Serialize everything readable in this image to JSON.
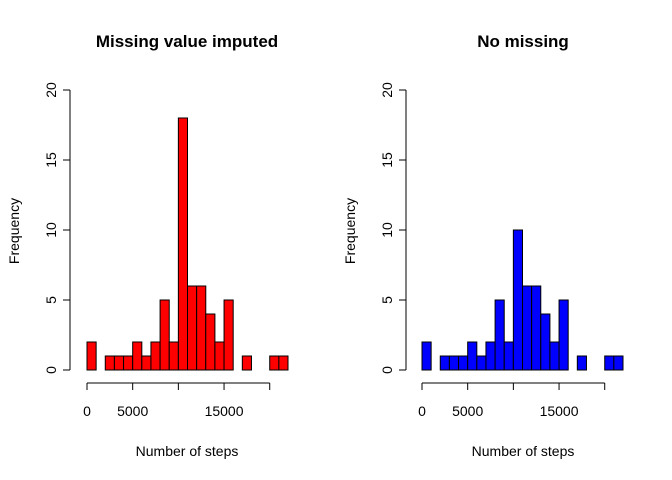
{
  "chart_data": [
    {
      "type": "bar",
      "title": "Missing value imputed",
      "xlabel": "Number of steps",
      "ylabel": "Frequency",
      "bar_color": "#ff0000",
      "bin_width": 1000,
      "bins_start": 0,
      "values": [
        2,
        0,
        1,
        1,
        1,
        2,
        1,
        2,
        5,
        2,
        18,
        6,
        6,
        4,
        2,
        5,
        0,
        1,
        0,
        0,
        1,
        1
      ],
      "x_ticks": [
        0,
        5000,
        10000,
        15000,
        20000
      ],
      "x_tick_labels": [
        "0",
        "5000",
        "",
        "15000",
        ""
      ],
      "y_ticks": [
        0,
        5,
        10,
        15,
        20
      ],
      "y_tick_labels": [
        "0",
        "5",
        "10",
        "15",
        "20"
      ],
      "ylim": [
        0,
        20
      ],
      "xlim": [
        0,
        22000
      ],
      "grid": false
    },
    {
      "type": "bar",
      "title": "No missing",
      "xlabel": "Number of steps",
      "ylabel": "Frequency",
      "bar_color": "#0000ff",
      "bin_width": 1000,
      "bins_start": 0,
      "values": [
        2,
        0,
        1,
        1,
        1,
        2,
        1,
        2,
        5,
        2,
        10,
        6,
        6,
        4,
        2,
        5,
        0,
        1,
        0,
        0,
        1,
        1
      ],
      "x_ticks": [
        0,
        5000,
        10000,
        15000,
        20000
      ],
      "x_tick_labels": [
        "0",
        "5000",
        "",
        "15000",
        ""
      ],
      "y_ticks": [
        0,
        5,
        10,
        15,
        20
      ],
      "y_tick_labels": [
        "0",
        "5",
        "10",
        "15",
        "20"
      ],
      "ylim": [
        0,
        20
      ],
      "xlim": [
        0,
        22000
      ],
      "grid": false
    }
  ]
}
